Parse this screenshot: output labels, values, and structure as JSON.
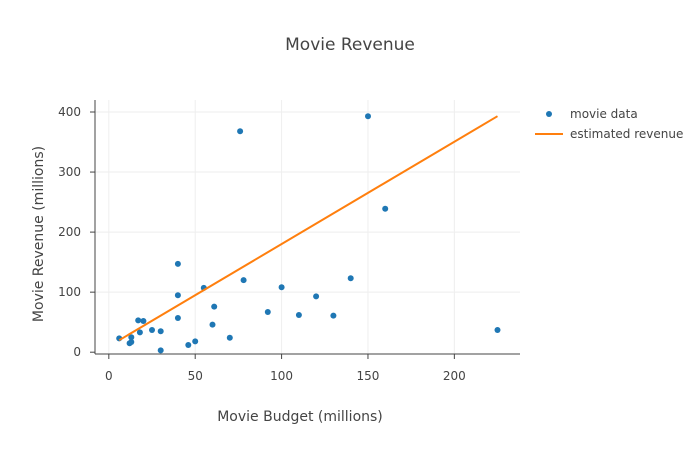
{
  "chart_data": {
    "type": "scatter",
    "title": "Movie Revenue",
    "xlabel": "Movie Budget (millions)",
    "ylabel": "Movie Revenue (millions)",
    "xlim": [
      -8,
      238
    ],
    "ylim": [
      -3,
      420
    ],
    "x_ticks": [
      0,
      50,
      100,
      150,
      200
    ],
    "y_ticks": [
      0,
      100,
      200,
      300,
      400
    ],
    "grid": true,
    "legend_position": "top-right",
    "series": [
      {
        "name": "movie data",
        "mode": "markers",
        "color": "#1f77b4",
        "points": [
          {
            "x": 6,
            "y": 23
          },
          {
            "x": 12,
            "y": 15
          },
          {
            "x": 13,
            "y": 17
          },
          {
            "x": 13,
            "y": 25
          },
          {
            "x": 17,
            "y": 53
          },
          {
            "x": 18,
            "y": 33
          },
          {
            "x": 20,
            "y": 52
          },
          {
            "x": 25,
            "y": 37
          },
          {
            "x": 30,
            "y": 35
          },
          {
            "x": 30,
            "y": 3
          },
          {
            "x": 40,
            "y": 147
          },
          {
            "x": 40,
            "y": 95
          },
          {
            "x": 40,
            "y": 57
          },
          {
            "x": 46,
            "y": 12
          },
          {
            "x": 50,
            "y": 18
          },
          {
            "x": 55,
            "y": 107
          },
          {
            "x": 60,
            "y": 46
          },
          {
            "x": 61,
            "y": 76
          },
          {
            "x": 70,
            "y": 24
          },
          {
            "x": 76,
            "y": 368
          },
          {
            "x": 78,
            "y": 120
          },
          {
            "x": 92,
            "y": 67
          },
          {
            "x": 100,
            "y": 108
          },
          {
            "x": 110,
            "y": 62
          },
          {
            "x": 120,
            "y": 93
          },
          {
            "x": 130,
            "y": 61
          },
          {
            "x": 140,
            "y": 123
          },
          {
            "x": 150,
            "y": 393
          },
          {
            "x": 160,
            "y": 239
          },
          {
            "x": 225,
            "y": 37
          }
        ]
      },
      {
        "name": "estimated revenue",
        "mode": "line",
        "color": "#ff7f0e",
        "points": [
          {
            "x": 6,
            "y": 20
          },
          {
            "x": 225,
            "y": 393
          }
        ]
      }
    ]
  }
}
